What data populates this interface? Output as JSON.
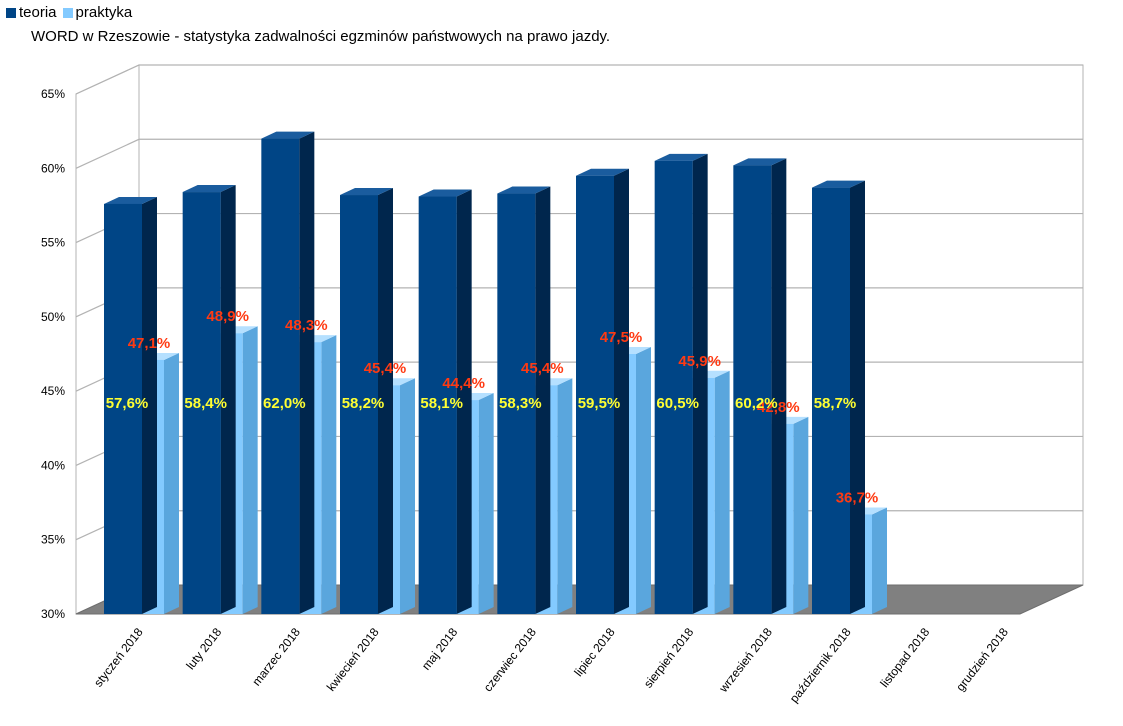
{
  "legend": {
    "teoria_label": "teoria",
    "praktyka_label": "praktyka",
    "teoria_color": "#004586",
    "praktyka_color": "#83caff"
  },
  "chart_data": {
    "type": "bar",
    "title": "WORD w Rzeszowie - statystyka zadwalności egzminów państwowych na prawo jazdy.",
    "categories": [
      "styczeń 2018",
      "luty 2018",
      "marzec 2018",
      "kwiecień 2018",
      "maj 2018",
      "czerwiec 2018",
      "lipiec 2018",
      "sierpień 2018",
      "wrzesień 2018",
      "październik 2018",
      "listopad 2018",
      "grudzień 2018"
    ],
    "series": [
      {
        "name": "teoria",
        "color": "#004586",
        "values": [
          57.6,
          58.4,
          62.0,
          58.2,
          58.1,
          58.3,
          59.5,
          60.5,
          60.2,
          58.7,
          null,
          null
        ],
        "labels": [
          "57,6%",
          "58,4%",
          "62,0%",
          "58,2%",
          "58,1%",
          "58,3%",
          "59,5%",
          "60,5%",
          "60,2%",
          "58,7%",
          "",
          ""
        ]
      },
      {
        "name": "praktyka",
        "color": "#83caff",
        "values": [
          47.1,
          48.9,
          48.3,
          45.4,
          44.4,
          45.4,
          47.5,
          45.9,
          42.8,
          36.7,
          null,
          null
        ],
        "labels": [
          "47,1%",
          "48,9%",
          "48,3%",
          "45,4%",
          "44,4%",
          "45,4%",
          "47,5%",
          "45,9%",
          "42,8%",
          "36,7%",
          "",
          ""
        ]
      }
    ],
    "yticks": [
      "30%",
      "35%",
      "40%",
      "45%",
      "50%",
      "55%",
      "60%",
      "65%"
    ],
    "ylim": [
      30,
      65
    ],
    "grid": true,
    "legend_position": "top-left",
    "style": "3d"
  }
}
